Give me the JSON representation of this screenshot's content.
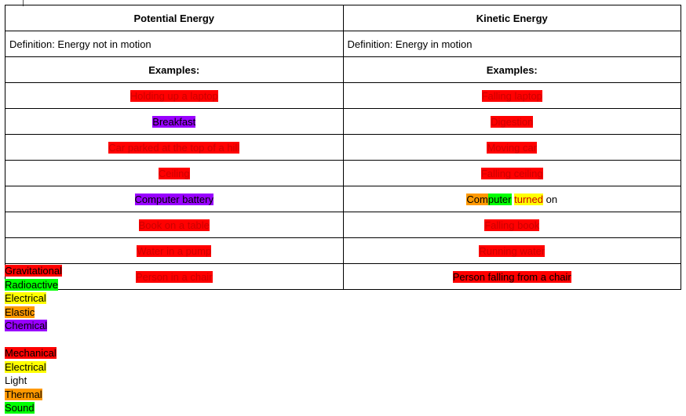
{
  "palette": {
    "red": "#ff0000",
    "green": "#00ff00",
    "yellow": "#ffff00",
    "orange": "#ff9900",
    "purple": "#9900ff",
    "dark_red_text": "#cc0000",
    "black_text": "#000000"
  },
  "table": {
    "left": {
      "header": "Potential Energy",
      "definition": "Definition: Energy not in motion",
      "examples_label": "Examples:"
    },
    "right": {
      "header": "Kinetic Energy",
      "definition": "Definition: Energy in motion",
      "examples_label": "Examples:"
    },
    "rows": [
      {
        "left": [
          {
            "text": "Holding up a laptop",
            "highlight": "red",
            "color": "dark_red_text"
          }
        ],
        "right": [
          {
            "text": "Falling laptop",
            "highlight": "red",
            "color": "dark_red_text"
          }
        ]
      },
      {
        "left": [
          {
            "text": "Breakfast",
            "highlight": "purple",
            "color": "black_text"
          }
        ],
        "right": [
          {
            "text": "Digestion",
            "highlight": "red",
            "color": "dark_red_text"
          }
        ]
      },
      {
        "left": [
          {
            "text": "Car parked at the top of a hill",
            "highlight": "red",
            "color": "dark_red_text"
          }
        ],
        "right": [
          {
            "text": "Moving car",
            "highlight": "red",
            "color": "dark_red_text"
          }
        ]
      },
      {
        "left": [
          {
            "text": "Ceiling",
            "highlight": "red",
            "color": "dark_red_text"
          }
        ],
        "right": [
          {
            "text": "Falling ceiling",
            "highlight": "red",
            "color": "dark_red_text"
          }
        ]
      },
      {
        "left": [
          {
            "text": "Computer battery",
            "highlight": "purple",
            "color": "black_text"
          }
        ],
        "right": [
          {
            "text": "Com",
            "highlight": "orange",
            "color": "black_text"
          },
          {
            "text": "puter",
            "highlight": "green",
            "color": "black_text"
          },
          {
            "text": " ",
            "highlight": null,
            "color": "black_text"
          },
          {
            "text": "turned",
            "highlight": "yellow",
            "color": "dark_red_text"
          },
          {
            "text": " on",
            "highlight": null,
            "color": "black_text"
          }
        ]
      },
      {
        "left": [
          {
            "text": "Book on a table",
            "highlight": "red",
            "color": "dark_red_text"
          }
        ],
        "right": [
          {
            "text": "Falling book",
            "highlight": "red",
            "color": "dark_red_text"
          }
        ]
      },
      {
        "left": [
          {
            "text": "Water in a pump",
            "highlight": "red",
            "color": "dark_red_text"
          }
        ],
        "right": [
          {
            "text": "Running water",
            "highlight": "red",
            "color": "dark_red_text"
          }
        ]
      },
      {
        "left": [
          {
            "text": "Person in a chair",
            "highlight": "red",
            "color": "dark_red_text"
          }
        ],
        "right": [
          {
            "text": "Person falling from a chair",
            "highlight": "red",
            "color": "black_text"
          }
        ]
      }
    ]
  },
  "energy_type_lists": [
    {
      "name": "potential-energy-types-list",
      "items": [
        {
          "text": "Gravitational",
          "highlight": "red",
          "color": "black_text"
        },
        {
          "text": "Radioactive",
          "highlight": "green",
          "color": "black_text"
        },
        {
          "text": "Electrical",
          "highlight": "yellow",
          "color": "black_text"
        },
        {
          "text": "Elastic",
          "highlight": "orange",
          "color": "black_text"
        },
        {
          "text": "Chemical",
          "highlight": "purple",
          "color": "black_text"
        }
      ]
    },
    {
      "name": "kinetic-energy-types-list",
      "items": [
        {
          "text": "Mechanical",
          "highlight": "red",
          "color": "black_text"
        },
        {
          "text": "Electrical",
          "highlight": "yellow",
          "color": "black_text"
        },
        {
          "text": "Light",
          "highlight": null,
          "color": "black_text"
        },
        {
          "text": "Thermal",
          "highlight": "orange",
          "color": "black_text"
        },
        {
          "text": "Sound",
          "highlight": "green",
          "color": "black_text"
        }
      ]
    }
  ]
}
